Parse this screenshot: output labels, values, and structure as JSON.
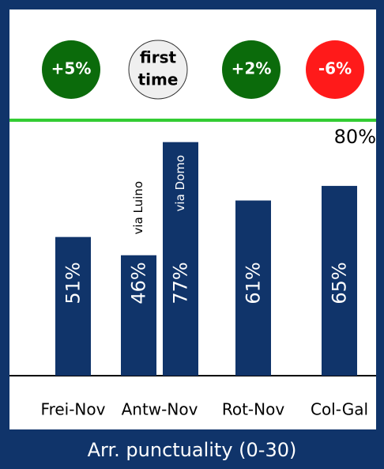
{
  "chart_data": {
    "type": "bar",
    "title": "Arr. punctuality (0-30)",
    "annotation": "80%",
    "badges": [
      {
        "lines": [
          "+5%"
        ],
        "color": "#0b6b0b"
      },
      {
        "lines": [
          "first",
          "time"
        ],
        "color": "#efefef"
      },
      {
        "lines": [
          "+2%"
        ],
        "color": "#0b6b0b"
      },
      {
        "lines": [
          "-6%"
        ],
        "color": "#ff1a1a"
      }
    ],
    "categories": [
      "Frei-Nov",
      "Antw-Nov",
      null,
      "Rot-Nov",
      "Col-Gal"
    ],
    "values": [
      51,
      46,
      77,
      61,
      65
    ],
    "value_labels": [
      "51%",
      "46%",
      "77%",
      "61%",
      "65%"
    ],
    "bar_notes": [
      null,
      "via Luino",
      "via Domo",
      null,
      null
    ],
    "color": "#10346a",
    "ylim": [
      13,
      83
    ]
  }
}
